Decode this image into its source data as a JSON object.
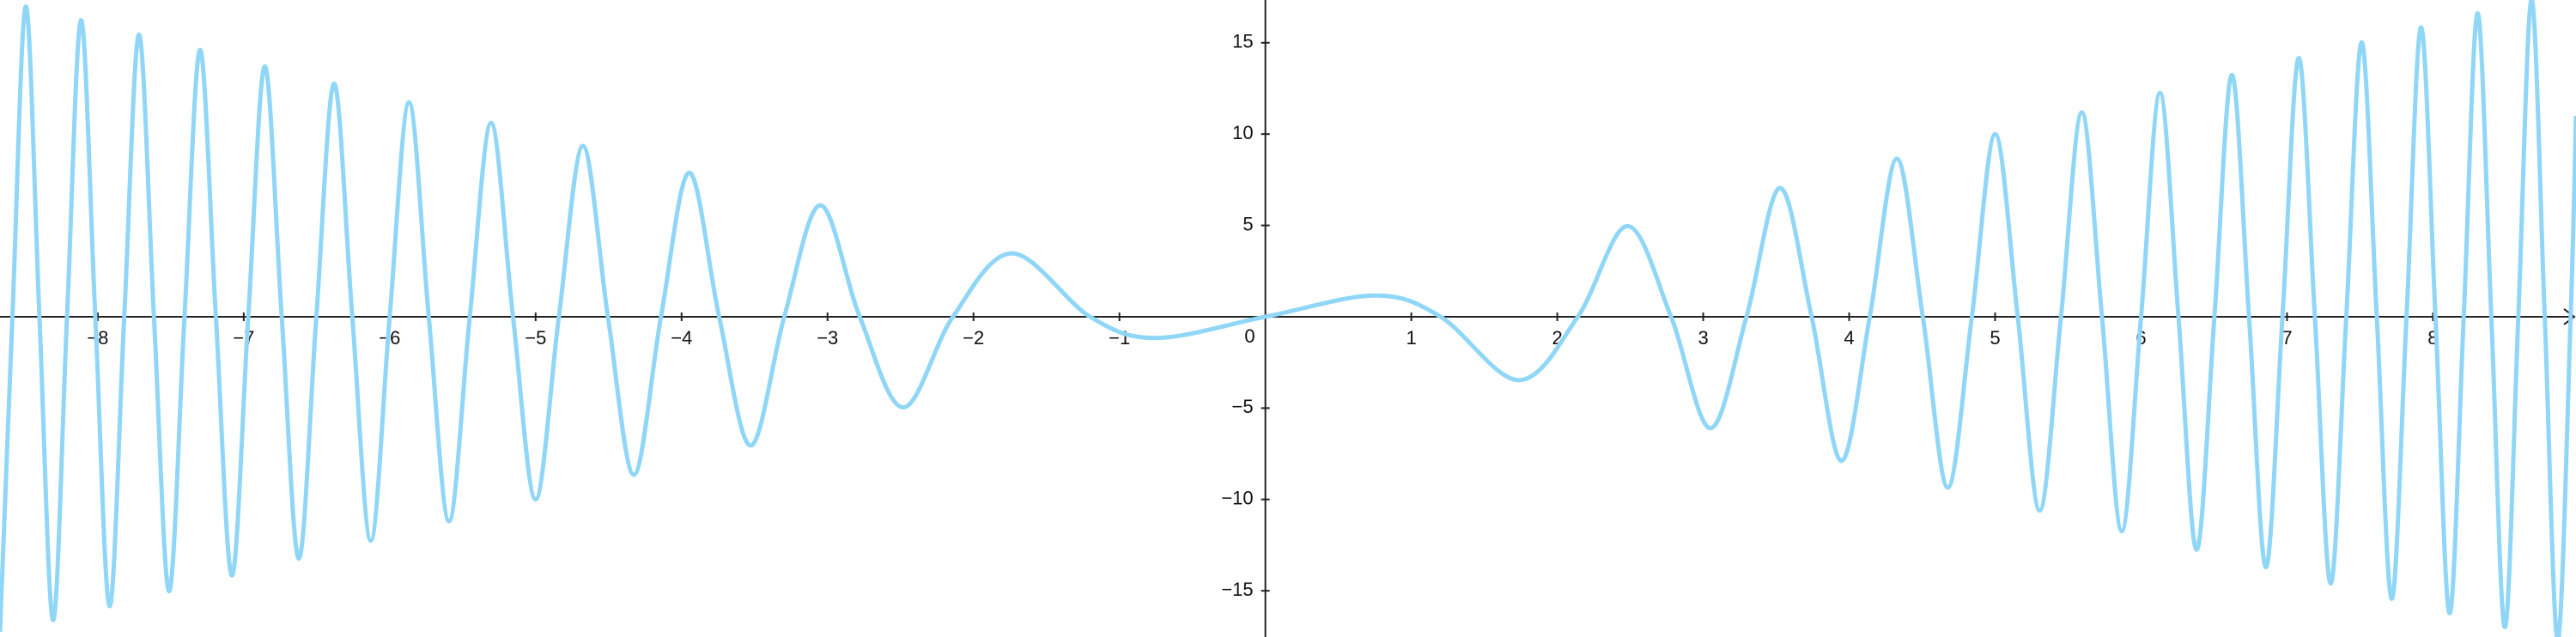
{
  "chart_data": {
    "type": "line",
    "x": [
      -8.67,
      -8.5848,
      -8.4928,
      -8.3998,
      -8.3058,
      -8.2107,
      -8.1144,
      -8.0171,
      -7.9185,
      -7.8187,
      -7.7176,
      -7.6151,
      -7.5113,
      -7.406,
      -7.2992,
      -7.1908,
      -7.0807,
      -6.9689,
      -6.8553,
      -6.7397,
      -6.6222,
      -6.5025,
      -6.3806,
      -6.2563,
      -6.1294,
      -6.0,
      -5.8675,
      -5.7322,
      -5.5935,
      -5.4512,
      -5.3052,
      -5.155,
      -5.0004,
      -4.8407,
      -4.6757,
      -4.5046,
      -4.3267,
      -4.1412,
      -3.947,
      -3.7427,
      -3.5266,
      -3.2964,
      -3.0489,
      -2.7794,
      -2.4807,
      -2.1408,
      -1.7356,
      -1.2007,
      -0.75,
      0,
      0.75,
      1.2007,
      1.7356,
      2.1408,
      2.4807,
      2.7794,
      3.0489,
      3.2964,
      3.5266,
      3.7427,
      3.947,
      4.1412,
      4.3267,
      4.5046,
      4.6757,
      4.8407,
      5.0004,
      5.155,
      5.3052,
      5.4512,
      5.5935,
      5.7322,
      5.8675,
      6.0,
      6.1294,
      6.2563,
      6.3806,
      6.5025,
      6.6222,
      6.7397,
      6.8553,
      6.9689,
      7.0807,
      7.1908,
      7.2992,
      7.406,
      7.5113,
      7.6151,
      7.7176,
      7.8187,
      7.9185,
      8.0171,
      8.1144,
      8.2107,
      8.3058,
      8.3998,
      8.4928,
      8.5848,
      8.6758,
      8.7658,
      8.855,
      8.9433,
      8.98
    ],
    "series": [
      {
        "color": "#8fd6f7",
        "values": [
          -17.25,
          0,
          16.99,
          0,
          -16.61,
          0,
          16.23,
          0,
          -15.84,
          0,
          15.44,
          0,
          -15.02,
          0,
          14.6,
          0,
          -14.16,
          0,
          13.71,
          0,
          -13.24,
          0,
          12.76,
          0,
          -12.26,
          0,
          11.74,
          0,
          -11.19,
          0,
          10.61,
          0,
          -10.0,
          0,
          9.35,
          0,
          -8.65,
          0,
          7.89,
          0,
          -7.05,
          0,
          6.1,
          0,
          -4.96,
          0,
          3.47,
          0,
          -1.16,
          0,
          1.16,
          0,
          -3.47,
          0,
          4.96,
          0,
          -6.1,
          0,
          7.05,
          0,
          -7.89,
          0,
          8.65,
          0,
          -9.35,
          0,
          10.0,
          0,
          -10.61,
          0,
          11.19,
          0,
          -11.74,
          0,
          12.26,
          0,
          -12.76,
          0,
          13.24,
          0,
          -13.71,
          0,
          14.16,
          0,
          -14.6,
          0,
          15.02,
          0,
          -15.44,
          0,
          15.84,
          0,
          -16.23,
          0,
          16.61,
          0,
          -16.99,
          0,
          17.35,
          0,
          -17.71,
          0,
          11.0
        ]
      }
    ],
    "xlim": [
      -8.67,
      8.98
    ],
    "ylim": [
      -17.53,
      17.34
    ],
    "xticks": [
      {
        "value": -8,
        "label": "−8"
      },
      {
        "value": -7,
        "label": "−7"
      },
      {
        "value": -6,
        "label": "−6"
      },
      {
        "value": -5,
        "label": "−5"
      },
      {
        "value": -4,
        "label": "−4"
      },
      {
        "value": -3,
        "label": "−3"
      },
      {
        "value": -2,
        "label": "−2"
      },
      {
        "value": -1,
        "label": "−1"
      },
      0,
      1,
      2,
      3,
      4,
      5,
      6,
      7,
      8
    ],
    "yticks": [
      {
        "value": -15,
        "label": "−15"
      },
      {
        "value": -10,
        "label": "−10"
      },
      {
        "value": -5,
        "label": "−5"
      },
      5,
      10,
      15
    ]
  }
}
